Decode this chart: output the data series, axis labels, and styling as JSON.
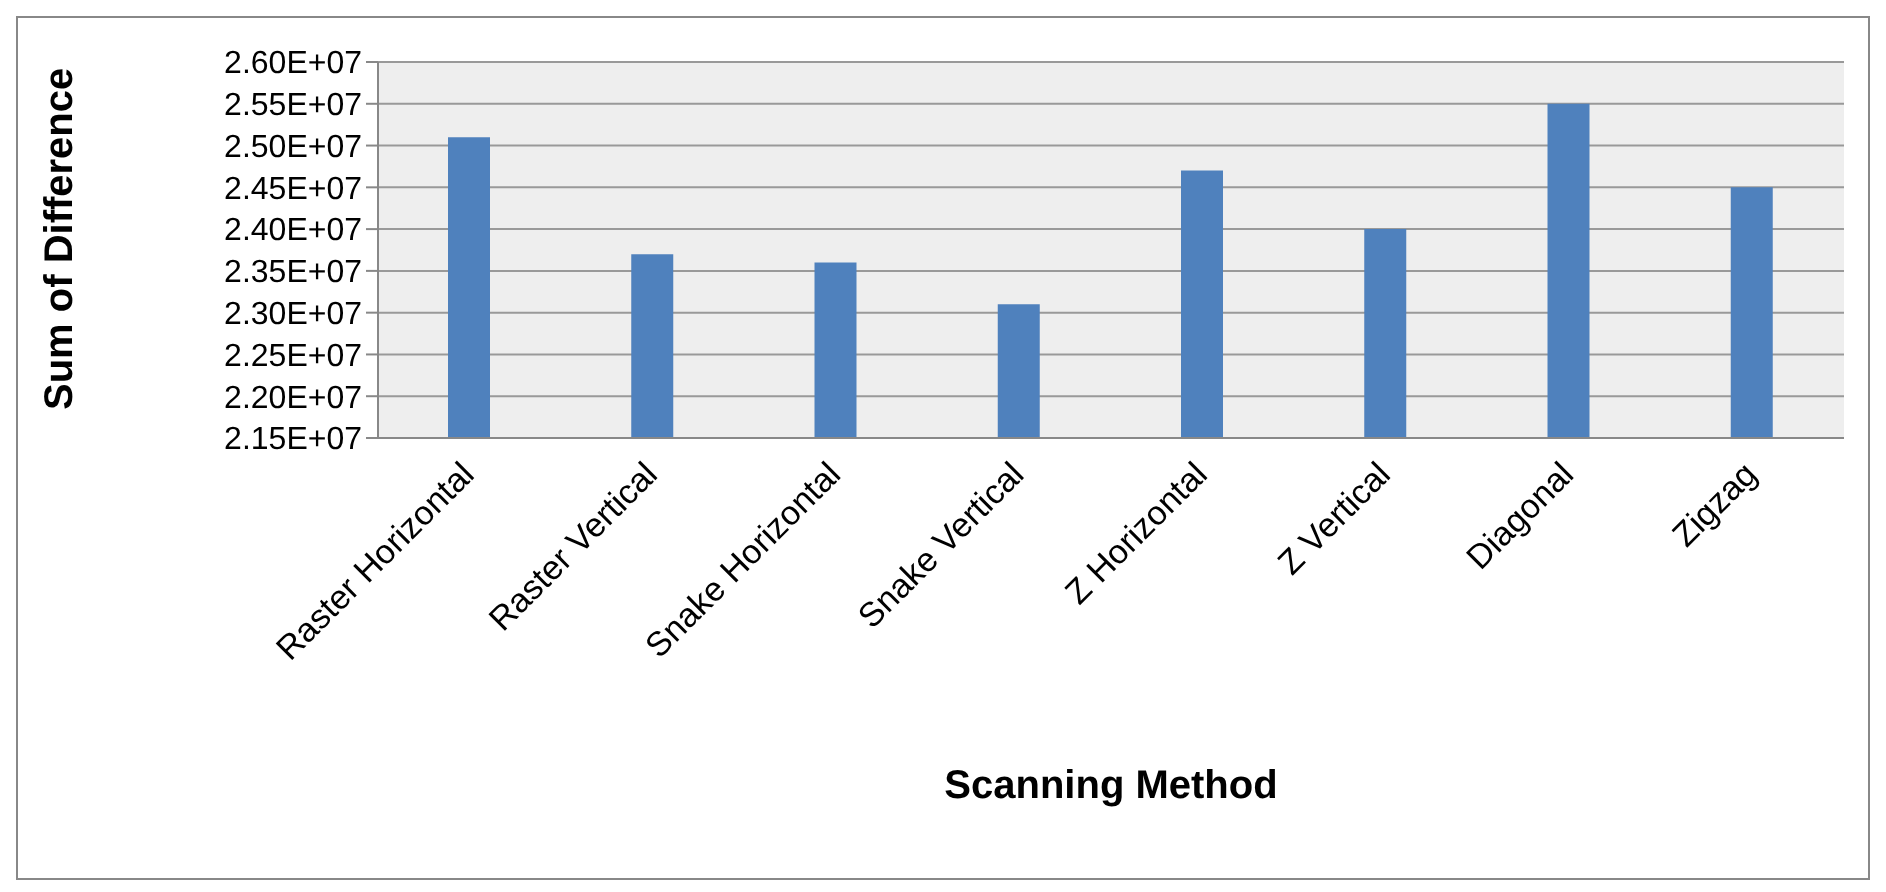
{
  "chart_data": {
    "type": "bar",
    "xlabel": "Scanning Method",
    "ylabel": "Sum of Difference",
    "categories": [
      "Raster Horizontal",
      "Raster Vertical",
      "Snake Horizontal",
      "Snake Vertical",
      "Z Horizontal",
      "Z Vertical",
      "Diagonal",
      "Zigzag"
    ],
    "values": [
      25100000,
      23700000,
      23600000,
      23100000,
      24700000,
      24000000,
      25500000,
      24500000
    ],
    "color": "#4f81bd",
    "ylim": [
      21500000,
      26000000
    ],
    "yticks": [
      {
        "value": 21500000,
        "label": "2.15E+07"
      },
      {
        "value": 22000000,
        "label": "2.20E+07"
      },
      {
        "value": 22500000,
        "label": "2.25E+07"
      },
      {
        "value": 23000000,
        "label": "2.30E+07"
      },
      {
        "value": 23500000,
        "label": "2.35E+07"
      },
      {
        "value": 24000000,
        "label": "2.40E+07"
      },
      {
        "value": 24500000,
        "label": "2.45E+07"
      },
      {
        "value": 25000000,
        "label": "2.50E+07"
      },
      {
        "value": 25500000,
        "label": "2.55E+07"
      },
      {
        "value": 26000000,
        "label": "2.60E+07"
      }
    ],
    "grid": "y",
    "legend": false
  }
}
